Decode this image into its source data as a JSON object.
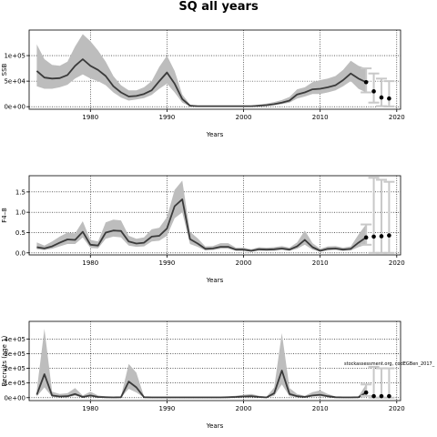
{
  "page": {
    "title": "SQ all years"
  },
  "chart_data": [
    {
      "type": "line",
      "ylabel": "SSB",
      "xlabel": "Years",
      "xlim": [
        1972,
        2020.5
      ],
      "ylim": [
        -5000,
        150000
      ],
      "xticks": [
        1980,
        1990,
        2000,
        2010,
        2020
      ],
      "xtick_labels": [
        "1980",
        "1990",
        "2000",
        "2010",
        "2020"
      ],
      "yticks": [
        0,
        50000,
        100000
      ],
      "ytick_labels": [
        "0e+00",
        "5e+04",
        "1e+05"
      ],
      "grid": "dotted",
      "band_color": "#bdbdbd",
      "line_color": "#3a3a3a",
      "series": [
        {
          "x": [
            1973,
            1974,
            1975,
            1976,
            1977,
            1978,
            1979,
            1980,
            1981,
            1982,
            1983,
            1984,
            1985,
            1986,
            1987,
            1988,
            1989,
            1990,
            1991,
            1992,
            1993,
            1994,
            1995,
            1996,
            1997,
            1998,
            1999,
            2000,
            2001,
            2002,
            2003,
            2004,
            2005,
            2006,
            2007,
            2008,
            2009,
            2010,
            2011,
            2012,
            2013,
            2014,
            2015,
            2016
          ],
          "y": [
            70000,
            57000,
            55000,
            56000,
            62000,
            80000,
            93000,
            80000,
            72000,
            60000,
            40000,
            28000,
            20000,
            21000,
            25000,
            32000,
            50000,
            67000,
            45000,
            15000,
            2000,
            1000,
            1000,
            1000,
            1000,
            1000,
            1000,
            1000,
            1000,
            2000,
            3000,
            5000,
            8000,
            12000,
            24000,
            28000,
            34000,
            35000,
            38000,
            42000,
            52000,
            65000,
            55000,
            48000
          ],
          "lower": [
            40000,
            35000,
            35000,
            38000,
            43000,
            55000,
            63000,
            55000,
            50000,
            42000,
            28000,
            18000,
            12000,
            14000,
            17000,
            23000,
            35000,
            45000,
            28000,
            8000,
            500,
            300,
            300,
            300,
            300,
            300,
            300,
            300,
            300,
            800,
            1500,
            3000,
            5000,
            8000,
            16000,
            20000,
            25000,
            25000,
            28000,
            32000,
            40000,
            50000,
            35000,
            28000
          ],
          "upper": [
            122000,
            93000,
            82000,
            80000,
            88000,
            118000,
            142000,
            128000,
            110000,
            88000,
            60000,
            42000,
            32000,
            32000,
            38000,
            50000,
            78000,
            100000,
            70000,
            24000,
            4000,
            2000,
            2000,
            2000,
            2000,
            2000,
            2000,
            2000,
            2000,
            4000,
            6000,
            9000,
            13000,
            19000,
            34000,
            38000,
            48000,
            52000,
            55000,
            60000,
            72000,
            90000,
            80000,
            75000
          ]
        }
      ],
      "projection": {
        "x": [
          2016,
          2017,
          2018,
          2019
        ],
        "y": [
          48000,
          30000,
          18000,
          16000
        ],
        "lower": [
          28000,
          8000,
          1000,
          500
        ],
        "upper": [
          75000,
          65000,
          55000,
          50000
        ]
      }
    },
    {
      "type": "line",
      "ylabel": "F4–8",
      "xlabel": "Years",
      "xlim": [
        1972,
        2020.5
      ],
      "ylim": [
        -0.05,
        1.9
      ],
      "xticks": [
        1980,
        1990,
        2000,
        2010,
        2020
      ],
      "xtick_labels": [
        "1980",
        "1990",
        "2000",
        "2010",
        "2020"
      ],
      "yticks": [
        0,
        0.5,
        1.0,
        1.5
      ],
      "ytick_labels": [
        "0.0",
        "0.5",
        "1.0",
        "1.5"
      ],
      "grid": "dotted",
      "band_color": "#bdbdbd",
      "line_color": "#3a3a3a",
      "series": [
        {
          "x": [
            1973,
            1974,
            1975,
            1976,
            1977,
            1978,
            1979,
            1980,
            1981,
            1982,
            1983,
            1984,
            1985,
            1986,
            1987,
            1988,
            1989,
            1990,
            1991,
            1992,
            1993,
            1994,
            1995,
            1996,
            1997,
            1998,
            1999,
            2000,
            2001,
            2002,
            2003,
            2004,
            2005,
            2006,
            2007,
            2008,
            2009,
            2010,
            2011,
            2012,
            2013,
            2014,
            2015,
            2016
          ],
          "y": [
            0.14,
            0.11,
            0.16,
            0.25,
            0.33,
            0.32,
            0.52,
            0.2,
            0.18,
            0.5,
            0.55,
            0.54,
            0.28,
            0.23,
            0.25,
            0.4,
            0.42,
            0.6,
            1.15,
            1.32,
            0.34,
            0.23,
            0.1,
            0.11,
            0.15,
            0.15,
            0.08,
            0.08,
            0.05,
            0.09,
            0.08,
            0.09,
            0.11,
            0.08,
            0.16,
            0.32,
            0.14,
            0.05,
            0.1,
            0.11,
            0.08,
            0.1,
            0.25,
            0.38
          ],
          "lower": [
            0.09,
            0.07,
            0.1,
            0.16,
            0.22,
            0.22,
            0.38,
            0.12,
            0.11,
            0.35,
            0.4,
            0.38,
            0.18,
            0.15,
            0.16,
            0.28,
            0.3,
            0.42,
            0.85,
            1.0,
            0.22,
            0.15,
            0.06,
            0.07,
            0.1,
            0.1,
            0.05,
            0.05,
            0.03,
            0.05,
            0.05,
            0.05,
            0.07,
            0.05,
            0.1,
            0.2,
            0.08,
            0.03,
            0.06,
            0.07,
            0.05,
            0.06,
            0.14,
            0.2
          ],
          "upper": [
            0.26,
            0.18,
            0.28,
            0.4,
            0.5,
            0.48,
            0.78,
            0.32,
            0.28,
            0.75,
            0.82,
            0.8,
            0.42,
            0.35,
            0.38,
            0.58,
            0.62,
            0.88,
            1.55,
            1.78,
            0.52,
            0.36,
            0.16,
            0.17,
            0.24,
            0.24,
            0.13,
            0.13,
            0.09,
            0.14,
            0.13,
            0.14,
            0.17,
            0.13,
            0.26,
            0.55,
            0.24,
            0.1,
            0.16,
            0.17,
            0.13,
            0.16,
            0.45,
            0.7
          ]
        }
      ],
      "projection": {
        "x": [
          2016,
          2017,
          2018,
          2019
        ],
        "y": [
          0.38,
          0.4,
          0.41,
          0.43
        ],
        "lower": [
          0.2,
          0.0,
          0.0,
          0.0
        ],
        "upper": [
          0.7,
          1.85,
          1.8,
          1.75
        ]
      }
    },
    {
      "type": "line",
      "ylabel": "Recruits (age 1)",
      "xlabel": "Years",
      "xlim": [
        1972,
        2020.5
      ],
      "ylim": [
        -20000,
        520000
      ],
      "xticks": [
        1980,
        1990,
        2000,
        2010,
        2020
      ],
      "xtick_labels": [
        "1980",
        "1990",
        "2000",
        "2010",
        "2020"
      ],
      "yticks": [
        0,
        100000,
        200000,
        300000,
        400000
      ],
      "ytick_labels": [
        "0e+00",
        "1e+05",
        "2e+05",
        "3e+05",
        "4e+05"
      ],
      "grid": "dotted",
      "band_color": "#bdbdbd",
      "line_color": "#3a3a3a",
      "annotation": "stockassessment.org, codEGBen_2017_",
      "series": [
        {
          "x": [
            1973,
            1974,
            1975,
            1976,
            1977,
            1978,
            1979,
            1980,
            1981,
            1982,
            1983,
            1984,
            1985,
            1986,
            1987,
            1988,
            1989,
            1990,
            1991,
            1992,
            1993,
            1994,
            1995,
            1996,
            1997,
            1998,
            1999,
            2000,
            2001,
            2002,
            2003,
            2004,
            2005,
            2006,
            2007,
            2008,
            2009,
            2010,
            2011,
            2012,
            2013,
            2014,
            2015,
            2016
          ],
          "y": [
            20000,
            160000,
            15000,
            8000,
            10000,
            25000,
            5000,
            15000,
            5000,
            3000,
            2000,
            3000,
            110000,
            70000,
            3000,
            2000,
            2000,
            2000,
            2000,
            2000,
            2000,
            2000,
            2000,
            2000,
            2000,
            3000,
            5000,
            8000,
            10000,
            5000,
            2000,
            30000,
            185000,
            25000,
            10000,
            5000,
            15000,
            20000,
            10000,
            3000,
            2000,
            2000,
            3000,
            35000
          ],
          "lower": [
            8000,
            70000,
            5000,
            3000,
            4000,
            12000,
            2000,
            6000,
            2000,
            1000,
            800,
            1000,
            60000,
            35000,
            1000,
            800,
            800,
            800,
            800,
            800,
            800,
            800,
            800,
            800,
            800,
            1200,
            2000,
            3500,
            4500,
            2000,
            800,
            12000,
            90000,
            10000,
            4000,
            2000,
            7000,
            9000,
            4000,
            1200,
            800,
            800,
            1200,
            12000
          ],
          "upper": [
            50000,
            470000,
            40000,
            25000,
            30000,
            65000,
            15000,
            40000,
            15000,
            8000,
            6000,
            8000,
            230000,
            170000,
            8000,
            6000,
            6000,
            6000,
            6000,
            6000,
            6000,
            6000,
            6000,
            6000,
            6000,
            8000,
            13000,
            20000,
            25000,
            13000,
            6000,
            70000,
            440000,
            65000,
            25000,
            13000,
            38000,
            50000,
            25000,
            8000,
            6000,
            6000,
            8000,
            90000
          ]
        }
      ],
      "projection": {
        "x": [
          2016,
          2017,
          2018,
          2019
        ],
        "y": [
          35000,
          10000,
          10000,
          10000
        ],
        "lower": [
          12000,
          0,
          0,
          0
        ],
        "upper": [
          90000,
          210000,
          200000,
          200000
        ]
      }
    }
  ]
}
